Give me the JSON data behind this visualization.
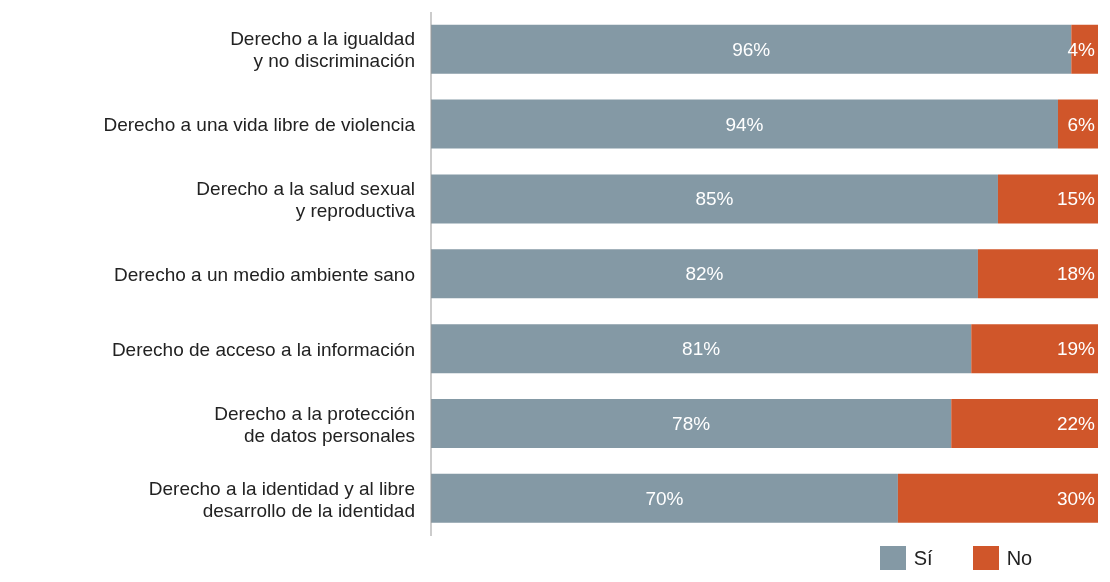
{
  "chart_data": {
    "type": "bar",
    "orientation": "horizontal",
    "stacked": true,
    "categories": [
      "Derecho a la igualdad\ny no discriminación",
      "Derecho a una vida libre de violencia",
      "Derecho a la salud sexual\ny reproductiva",
      "Derecho a un medio ambiente sano",
      "Derecho de acceso a la información",
      "Derecho a la protección\nde datos personales",
      "Derecho a la identidad y al libre\ndesarrollo de la identidad"
    ],
    "series": [
      {
        "name": "Sí",
        "color": "#8499a5",
        "values": [
          96,
          94,
          85,
          82,
          81,
          78,
          70
        ],
        "value_labels": [
          "96%",
          "94%",
          "85%",
          "82%",
          "81%",
          "78%",
          "70%"
        ]
      },
      {
        "name": "No",
        "color": "#d0562a",
        "values": [
          4,
          6,
          15,
          18,
          19,
          22,
          30
        ],
        "value_labels": [
          "4%",
          "6%",
          "15%",
          "18%",
          "19%",
          "22%",
          "30%"
        ]
      }
    ],
    "legend": "bottom",
    "grid": false
  }
}
